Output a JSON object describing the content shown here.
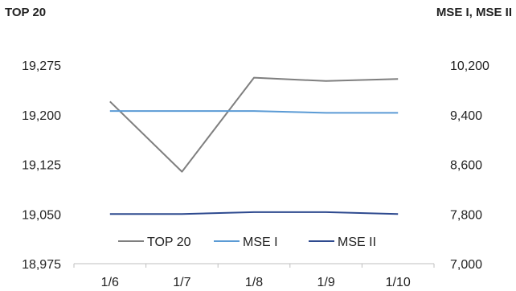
{
  "chart_data": {
    "type": "line",
    "categories": [
      "1/6",
      "1/7",
      "1/8",
      "1/9",
      "1/10"
    ],
    "left_axis": {
      "title": "TOP 20",
      "ticks": [
        "18,975",
        "19,050",
        "19,125",
        "19,200",
        "19,275"
      ],
      "ylim": [
        18975,
        19275
      ]
    },
    "right_axis": {
      "title": "MSE I, MSE II",
      "ticks": [
        "7,000",
        "7,800",
        "8,600",
        "9,400",
        "10,200"
      ],
      "ylim": [
        7000,
        10200
      ]
    },
    "series": [
      {
        "name": "TOP 20",
        "axis": "left",
        "color": "#7f7f7f",
        "values": [
          19220,
          19114,
          19256,
          19251,
          19254
        ]
      },
      {
        "name": "MSE I",
        "axis": "right",
        "color": "#5b9bd5",
        "values": [
          9460,
          9460,
          9460,
          9430,
          9430
        ]
      },
      {
        "name": "MSE II",
        "axis": "right",
        "color": "#2e4a8f",
        "values": [
          7800,
          7800,
          7830,
          7830,
          7800
        ]
      }
    ],
    "grid": false,
    "legend_position": "bottom-inside"
  }
}
